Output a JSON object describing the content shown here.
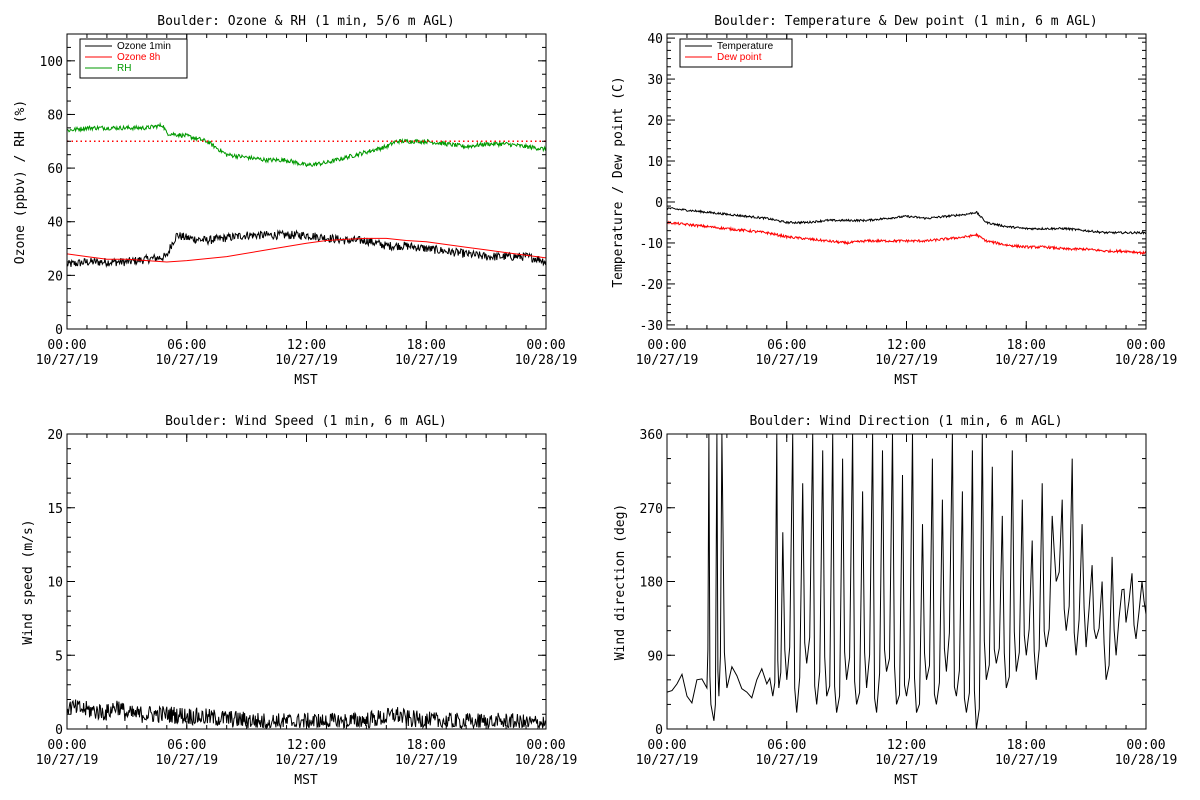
{
  "chart_data": [
    {
      "type": "line",
      "title": "Boulder: Ozone & RH (1 min, 5/6 m AGL)",
      "ylabel": "Ozone (ppbv) / RH (%)",
      "xlabel": "MST",
      "ylim": [
        0,
        110
      ],
      "yticks": [
        0,
        20,
        40,
        60,
        80,
        100
      ],
      "xlim": [
        0,
        24
      ],
      "xticks": [
        0,
        6,
        12,
        18,
        24
      ],
      "xtick_labels": [
        [
          "00:00",
          "10/27/19"
        ],
        [
          "06:00",
          "10/27/19"
        ],
        [
          "12:00",
          "10/27/19"
        ],
        [
          "18:00",
          "10/27/19"
        ],
        [
          "00:00",
          "10/28/19"
        ]
      ],
      "legend": "top-left",
      "series": [
        {
          "name": "Ozone 1min",
          "color": "#000000",
          "noise": 1.6,
          "x": [
            0,
            1,
            2,
            3,
            4,
            5,
            5.2,
            5.5,
            6,
            7,
            8,
            9,
            10,
            11,
            12,
            13,
            14,
            15,
            16,
            17,
            18,
            19,
            20,
            21,
            22,
            23,
            23.7,
            24
          ],
          "y": [
            24,
            25,
            25,
            25,
            26,
            27,
            31,
            35,
            34,
            33,
            34,
            35,
            35,
            35,
            35,
            34,
            33,
            33,
            31,
            31,
            30,
            29,
            28,
            27,
            27,
            27,
            26,
            25
          ]
        },
        {
          "name": "Ozone 8h",
          "color": "#ff0000",
          "noise": 0,
          "x": [
            0,
            1,
            2,
            3,
            4,
            5,
            6,
            8,
            10,
            12,
            13,
            14,
            15,
            16,
            17,
            18,
            19,
            20,
            21,
            22,
            23,
            24
          ],
          "y": [
            28,
            27,
            26,
            26,
            25.5,
            25,
            25.5,
            27,
            29.5,
            32,
            33,
            33.5,
            33.8,
            33.8,
            33,
            32.5,
            31.5,
            30.5,
            29.5,
            28.5,
            27.5,
            26.5
          ]
        },
        {
          "name": "RH",
          "color": "#009900",
          "noise": 0.8,
          "x": [
            0,
            1,
            2,
            3,
            4,
            4.8,
            5,
            6,
            7,
            8,
            9,
            10,
            11,
            12,
            13,
            14,
            15,
            16,
            16.5,
            17,
            18,
            19,
            20,
            21,
            22,
            23,
            24
          ],
          "y": [
            74,
            75,
            75,
            75,
            75,
            76,
            73,
            72,
            70,
            65,
            64,
            63,
            63,
            61,
            62,
            64,
            66,
            68,
            70,
            70,
            70,
            69,
            68,
            69,
            69,
            68,
            67
          ]
        },
        {
          "name": "",
          "color": "#ff0000",
          "dotted": true,
          "noise": 0,
          "x": [
            0,
            24
          ],
          "y": [
            70,
            70
          ]
        }
      ]
    },
    {
      "type": "line",
      "title": "Boulder: Temperature & Dew point (1 min, 6 m AGL)",
      "ylabel": "Temperature / Dew point (C)",
      "xlabel": "MST",
      "ylim": [
        -31,
        41
      ],
      "yticks": [
        -30,
        -20,
        -10,
        0,
        10,
        20,
        30,
        40
      ],
      "xlim": [
        0,
        24
      ],
      "xticks": [
        0,
        6,
        12,
        18,
        24
      ],
      "xtick_labels": [
        [
          "00:00",
          "10/27/19"
        ],
        [
          "06:00",
          "10/27/19"
        ],
        [
          "12:00",
          "10/27/19"
        ],
        [
          "18:00",
          "10/27/19"
        ],
        [
          "00:00",
          "10/28/19"
        ]
      ],
      "legend": "top-left",
      "series": [
        {
          "name": "Temperature",
          "color": "#000000",
          "noise": 0.25,
          "x": [
            0,
            1,
            2,
            3,
            4,
            5,
            6,
            7,
            8,
            9,
            10,
            11,
            12,
            13,
            14,
            15,
            15.5,
            16,
            17,
            18,
            19,
            20,
            21,
            22,
            23,
            24
          ],
          "y": [
            -1.5,
            -2,
            -2.5,
            -3,
            -3.5,
            -4,
            -5,
            -5,
            -4.5,
            -4.5,
            -4.5,
            -4,
            -3.5,
            -4,
            -3.5,
            -3,
            -2.5,
            -5,
            -6,
            -6.5,
            -6.5,
            -6.5,
            -7,
            -7.5,
            -7.5,
            -7.5
          ]
        },
        {
          "name": "Dew point",
          "color": "#ff0000",
          "noise": 0.3,
          "x": [
            0,
            1,
            2,
            3,
            4,
            5,
            6,
            7,
            8,
            9,
            10,
            11,
            12,
            13,
            14,
            15,
            15.5,
            16,
            17,
            18,
            19,
            20,
            21,
            22,
            23,
            24
          ],
          "y": [
            -5,
            -5.5,
            -6,
            -6.5,
            -7,
            -7.5,
            -8.5,
            -9,
            -9.5,
            -10,
            -9.5,
            -9.5,
            -9.5,
            -9.5,
            -9,
            -8.5,
            -8,
            -9.5,
            -10.5,
            -11,
            -11,
            -11.5,
            -11.5,
            -12,
            -12,
            -12.5
          ]
        }
      ]
    },
    {
      "type": "line",
      "title": "Boulder: Wind Speed (1 min, 6 m AGL)",
      "ylabel": "Wind speed (m/s)",
      "xlabel": "MST",
      "ylim": [
        0,
        20
      ],
      "yticks": [
        0,
        5,
        10,
        15,
        20
      ],
      "xlim": [
        0,
        24
      ],
      "xticks": [
        0,
        6,
        12,
        18,
        24
      ],
      "xtick_labels": [
        [
          "00:00",
          "10/27/19"
        ],
        [
          "06:00",
          "10/27/19"
        ],
        [
          "12:00",
          "10/27/19"
        ],
        [
          "18:00",
          "10/27/19"
        ],
        [
          "00:00",
          "10/28/19"
        ]
      ],
      "legend": "none",
      "series": [
        {
          "name": "",
          "color": "#000000",
          "noise": 0.6,
          "x": [
            0,
            1,
            2,
            2.5,
            3,
            4,
            5,
            6,
            7,
            8,
            9,
            10,
            11,
            12,
            13,
            14,
            15,
            16,
            16.5,
            17,
            18,
            19,
            20,
            21,
            22,
            23,
            24
          ],
          "y": [
            1.5,
            1.3,
            1.1,
            1.6,
            1.0,
            1.0,
            1.0,
            0.9,
            0.8,
            0.7,
            0.6,
            0.5,
            0.5,
            0.5,
            0.5,
            0.5,
            0.6,
            0.8,
            1.0,
            0.7,
            0.6,
            0.5,
            0.5,
            0.5,
            0.5,
            0.4,
            0.4
          ]
        }
      ]
    },
    {
      "type": "line",
      "title": "Boulder: Wind Direction (1 min, 6 m AGL)",
      "ylabel": "Wind direction (deg)",
      "xlabel": "MST",
      "ylim": [
        0,
        360
      ],
      "yticks": [
        0,
        90,
        180,
        270,
        360
      ],
      "xlim": [
        0,
        24
      ],
      "xticks": [
        0,
        6,
        12,
        18,
        24
      ],
      "xtick_labels": [
        [
          "00:00",
          "10/27/19"
        ],
        [
          "06:00",
          "10/27/19"
        ],
        [
          "12:00",
          "10/27/19"
        ],
        [
          "18:00",
          "10/27/19"
        ],
        [
          "00:00",
          "10/28/19"
        ]
      ],
      "legend": "none",
      "series": [
        {
          "name": "",
          "color": "#000000",
          "noise": 0,
          "x": [
            0,
            0.5,
            1,
            1.5,
            2,
            2.1,
            2.2,
            2.35,
            2.5,
            2.6,
            2.75,
            3,
            3.5,
            4,
            4.5,
            5,
            5.3,
            5.5,
            5.6,
            5.8,
            6,
            6.3,
            6.5,
            6.8,
            7,
            7.3,
            7.5,
            7.8,
            8,
            8.3,
            8.5,
            8.8,
            9,
            9.3,
            9.5,
            9.8,
            10,
            10.3,
            10.5,
            10.8,
            11,
            11.3,
            11.5,
            11.8,
            12,
            12.3,
            12.5,
            12.8,
            13,
            13.3,
            13.5,
            13.8,
            14,
            14.3,
            14.5,
            14.8,
            15,
            15.3,
            15.5,
            15.8,
            16,
            16.3,
            16.5,
            16.8,
            17,
            17.3,
            17.5,
            17.8,
            18,
            18.3,
            18.5,
            18.8,
            19,
            19.3,
            19.5,
            19.8,
            20,
            20.3,
            20.5,
            20.8,
            21,
            21.3,
            21.5,
            21.8,
            22,
            22.3,
            22.5,
            22.8,
            23,
            23.3,
            23.5,
            23.8,
            24
          ],
          "y": [
            45,
            55,
            40,
            60,
            50,
            360,
            30,
            10,
            360,
            40,
            360,
            50,
            65,
            45,
            60,
            55,
            40,
            360,
            50,
            240,
            60,
            360,
            20,
            300,
            80,
            360,
            30,
            340,
            40,
            360,
            20,
            330,
            60,
            360,
            30,
            290,
            50,
            360,
            20,
            340,
            70,
            360,
            30,
            310,
            40,
            360,
            20,
            250,
            60,
            330,
            30,
            280,
            70,
            360,
            40,
            290,
            20,
            340,
            0,
            360,
            60,
            320,
            80,
            260,
            50,
            340,
            70,
            280,
            90,
            230,
            60,
            300,
            100,
            260,
            180,
            280,
            120,
            330,
            90,
            250,
            100,
            200,
            110,
            180,
            60,
            210,
            90,
            170,
            130,
            190,
            110,
            180,
            140
          ]
        }
      ]
    }
  ]
}
